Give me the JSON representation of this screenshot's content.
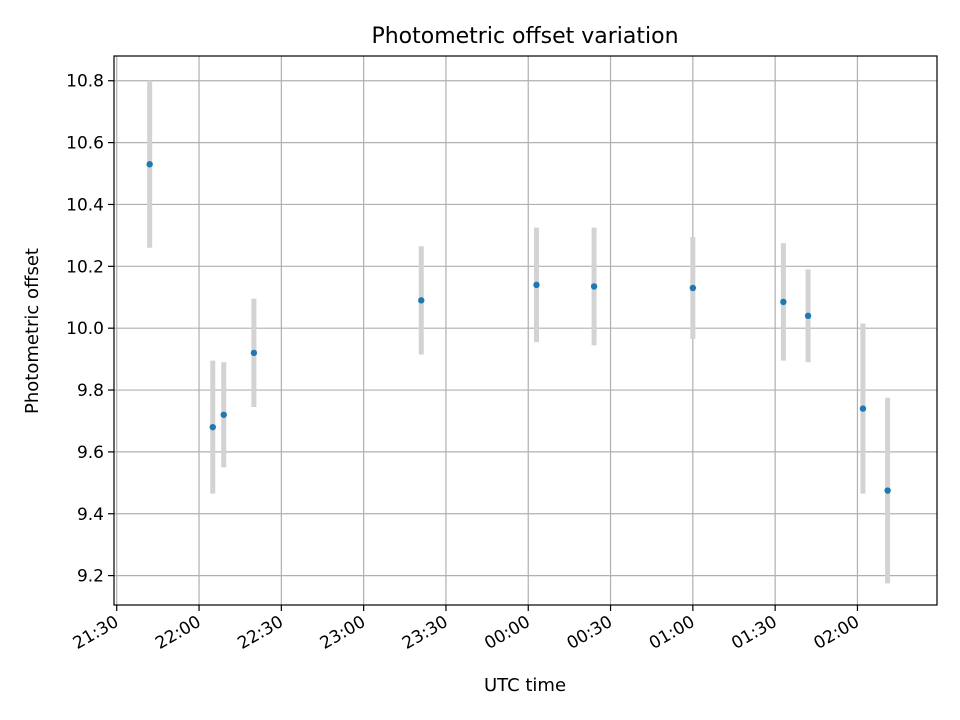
{
  "chart_data": {
    "type": "scatter",
    "title": "Photometric offset variation",
    "xlabel": "UTC time",
    "ylabel": "Photometric offset",
    "xlim": [
      "21:29",
      "02:29"
    ],
    "ylim": [
      9.105,
      10.88
    ],
    "grid": true,
    "x_ticks": [
      "21:30",
      "22:00",
      "22:30",
      "23:00",
      "23:30",
      "00:00",
      "00:30",
      "01:00",
      "01:30",
      "02:00"
    ],
    "y_ticks": [
      "9.2",
      "9.4",
      "9.6",
      "9.8",
      "10.0",
      "10.2",
      "10.4",
      "10.6",
      "10.8"
    ],
    "series": [
      {
        "marker_color": "#1f77b4",
        "errorbar_color": "#d3d3d3",
        "points": [
          {
            "x": "21:42",
            "y": 10.53,
            "err": 0.27
          },
          {
            "x": "22:05",
            "y": 9.68,
            "err": 0.215
          },
          {
            "x": "22:09",
            "y": 9.72,
            "err": 0.17
          },
          {
            "x": "22:20",
            "y": 9.92,
            "err": 0.175
          },
          {
            "x": "23:21",
            "y": 10.09,
            "err": 0.175
          },
          {
            "x": "00:03",
            "y": 10.14,
            "err": 0.185
          },
          {
            "x": "00:24",
            "y": 10.135,
            "err": 0.19
          },
          {
            "x": "01:00",
            "y": 10.13,
            "err": 0.165
          },
          {
            "x": "01:33",
            "y": 10.085,
            "err": 0.19
          },
          {
            "x": "01:42",
            "y": 10.04,
            "err": 0.15
          },
          {
            "x": "02:02",
            "y": 9.74,
            "err": 0.275
          },
          {
            "x": "02:11",
            "y": 9.475,
            "err": 0.3
          }
        ]
      }
    ]
  }
}
